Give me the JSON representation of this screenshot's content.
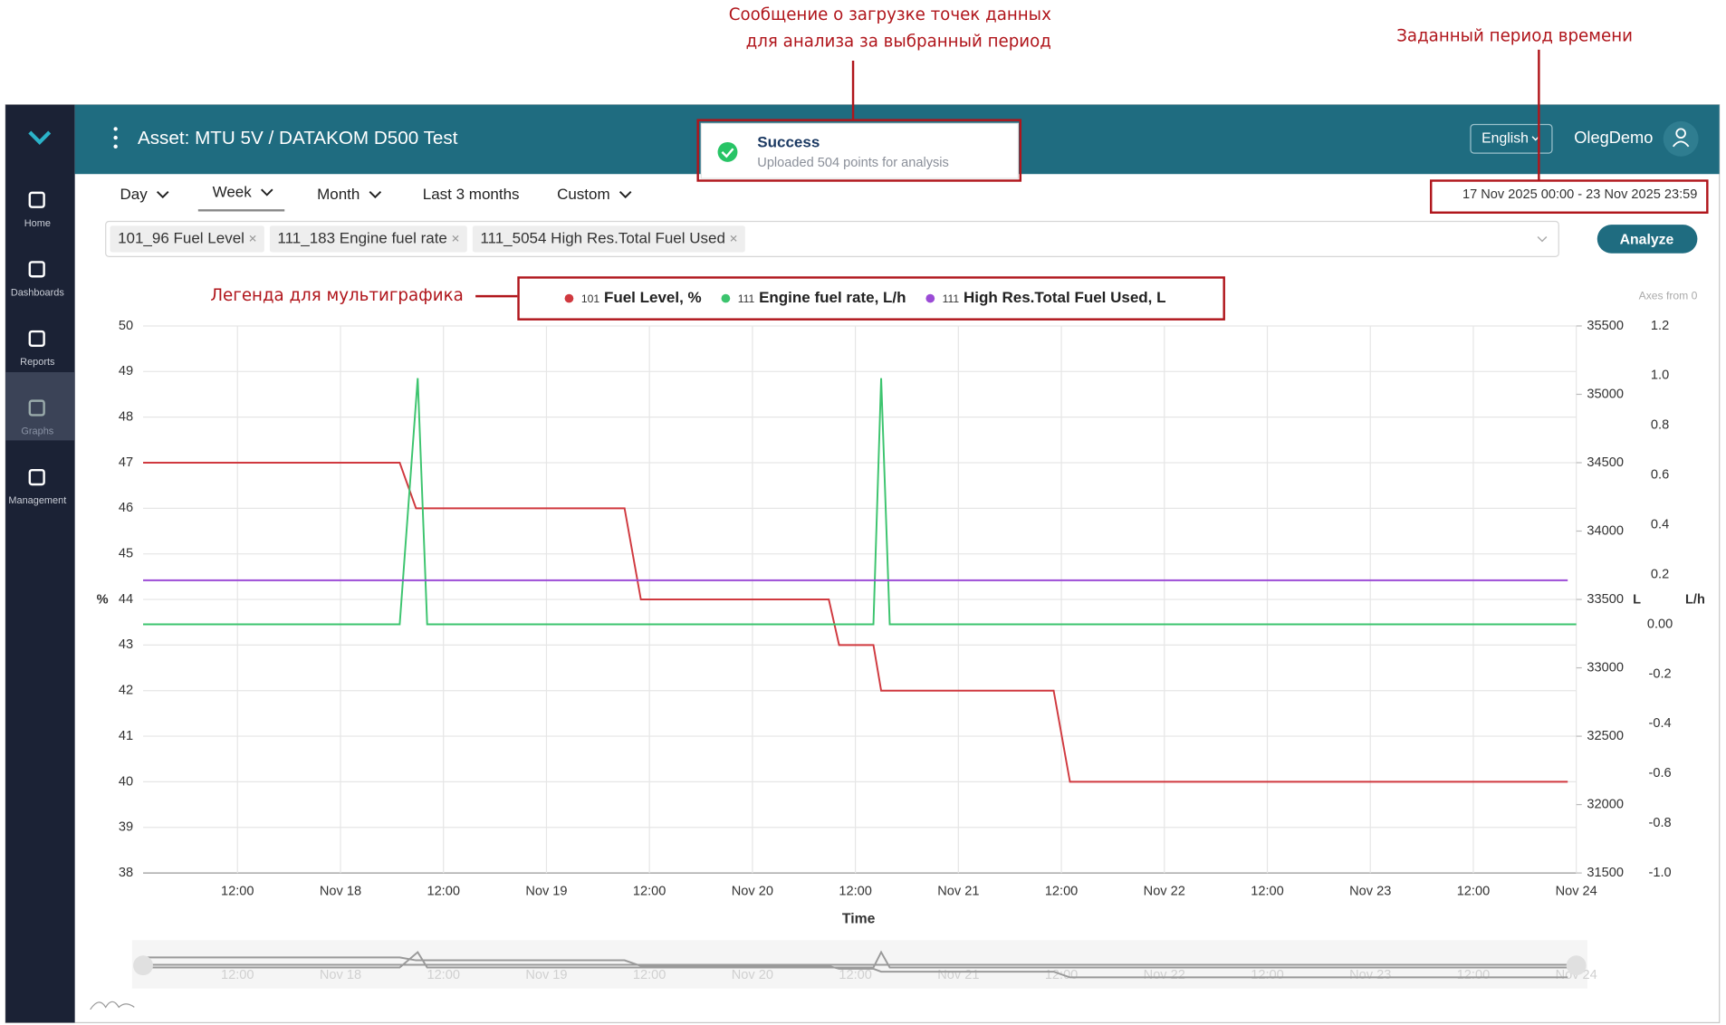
{
  "annotations": {
    "toast_note": [
      "Сообщение о загрузке точек данных",
      "для анализа за выбранный период"
    ],
    "period_note": "Заданный период времени",
    "legend_note": "Легенда для мультиграфика"
  },
  "sidebar": {
    "items": [
      "Home",
      "Dashboards",
      "Reports",
      "Graphs",
      "Management"
    ],
    "active": "Graphs"
  },
  "header": {
    "title": "Asset: MTU 5V / DATAKOM D500 Test",
    "language": "English",
    "user": "OlegDemo"
  },
  "toast": {
    "title": "Success",
    "message": "Uploaded 504 points for analysis"
  },
  "tabs": {
    "items": [
      "Day",
      "Week",
      "Month",
      "Last 3 months",
      "Custom"
    ],
    "active": "Week"
  },
  "date_range": "17 Nov 2025 00:00 - 23 Nov 2025 23:59",
  "filters": [
    "101_96 Fuel Level",
    "111_183 Engine fuel rate",
    "111_5054 High Res.Total Fuel Used"
  ],
  "analyze_button": "Analyze",
  "chart_data": {
    "type": "line",
    "axes_note": "Axes from 0",
    "xlabel": "Time",
    "ylabel": "%",
    "y2label": "L",
    "y3label": "L/h",
    "grid": true,
    "legend": "top",
    "xlim": [
      1,
      168
    ],
    "xticks": [
      {
        "value": 12,
        "label": "12:00"
      },
      {
        "value": 24,
        "label": "Nov 18"
      },
      {
        "value": 36,
        "label": "12:00"
      },
      {
        "value": 48,
        "label": "Nov 19"
      },
      {
        "value": 60,
        "label": "12:00"
      },
      {
        "value": 72,
        "label": "Nov 20"
      },
      {
        "value": 84,
        "label": "12:00"
      },
      {
        "value": 96,
        "label": "Nov 21"
      },
      {
        "value": 108,
        "label": "12:00"
      },
      {
        "value": 120,
        "label": "Nov 22"
      },
      {
        "value": 132,
        "label": "12:00"
      },
      {
        "value": 144,
        "label": "Nov 23"
      },
      {
        "value": 156,
        "label": "12:00"
      },
      {
        "value": 168,
        "label": "Nov 24"
      }
    ],
    "ylim": [
      38,
      50
    ],
    "yticks": [
      38,
      39,
      40,
      41,
      42,
      43,
      44,
      45,
      46,
      47,
      48,
      49,
      50
    ],
    "y2lim": [
      31500,
      35500
    ],
    "y2ticks": [
      31500,
      32000,
      32500,
      33000,
      33500,
      34000,
      34500,
      35000,
      35500
    ],
    "y3lim": [
      -1,
      1.2
    ],
    "y3ticks": [
      {
        "value": -1,
        "label": "-1.0"
      },
      -0.8,
      -0.6,
      -0.4,
      -0.2,
      {
        "value": 0,
        "label": "0.00"
      },
      0.2,
      0.4,
      0.6,
      0.8,
      {
        "value": 1,
        "label": "1.0"
      },
      1.2
    ],
    "series": [
      {
        "id": "101",
        "name": "Fuel Level, %",
        "color": "#d0393f",
        "axis": "y",
        "x": [
          1,
          30.9,
          32.8,
          57.1,
          59,
          80.9,
          82.1,
          86.1,
          87,
          107.1,
          109,
          167
        ],
        "values": [
          47,
          47,
          46,
          46,
          44,
          44,
          43,
          43,
          42,
          42,
          40,
          40
        ]
      },
      {
        "id": "111",
        "name": "Engine fuel rate, L/h",
        "color": "#3cc46e",
        "axis": "y3",
        "x": [
          1,
          30.9,
          33,
          34.1,
          86.1,
          87,
          88,
          168
        ],
        "values": [
          0,
          0,
          0.99,
          0,
          0,
          0.99,
          0,
          0
        ]
      },
      {
        "id": "111",
        "name": "High Res.Total Fuel Used, L",
        "color": "#9b4bd6",
        "axis": "y2",
        "x": [
          1,
          167
        ],
        "values": [
          33640,
          33640
        ]
      }
    ]
  }
}
